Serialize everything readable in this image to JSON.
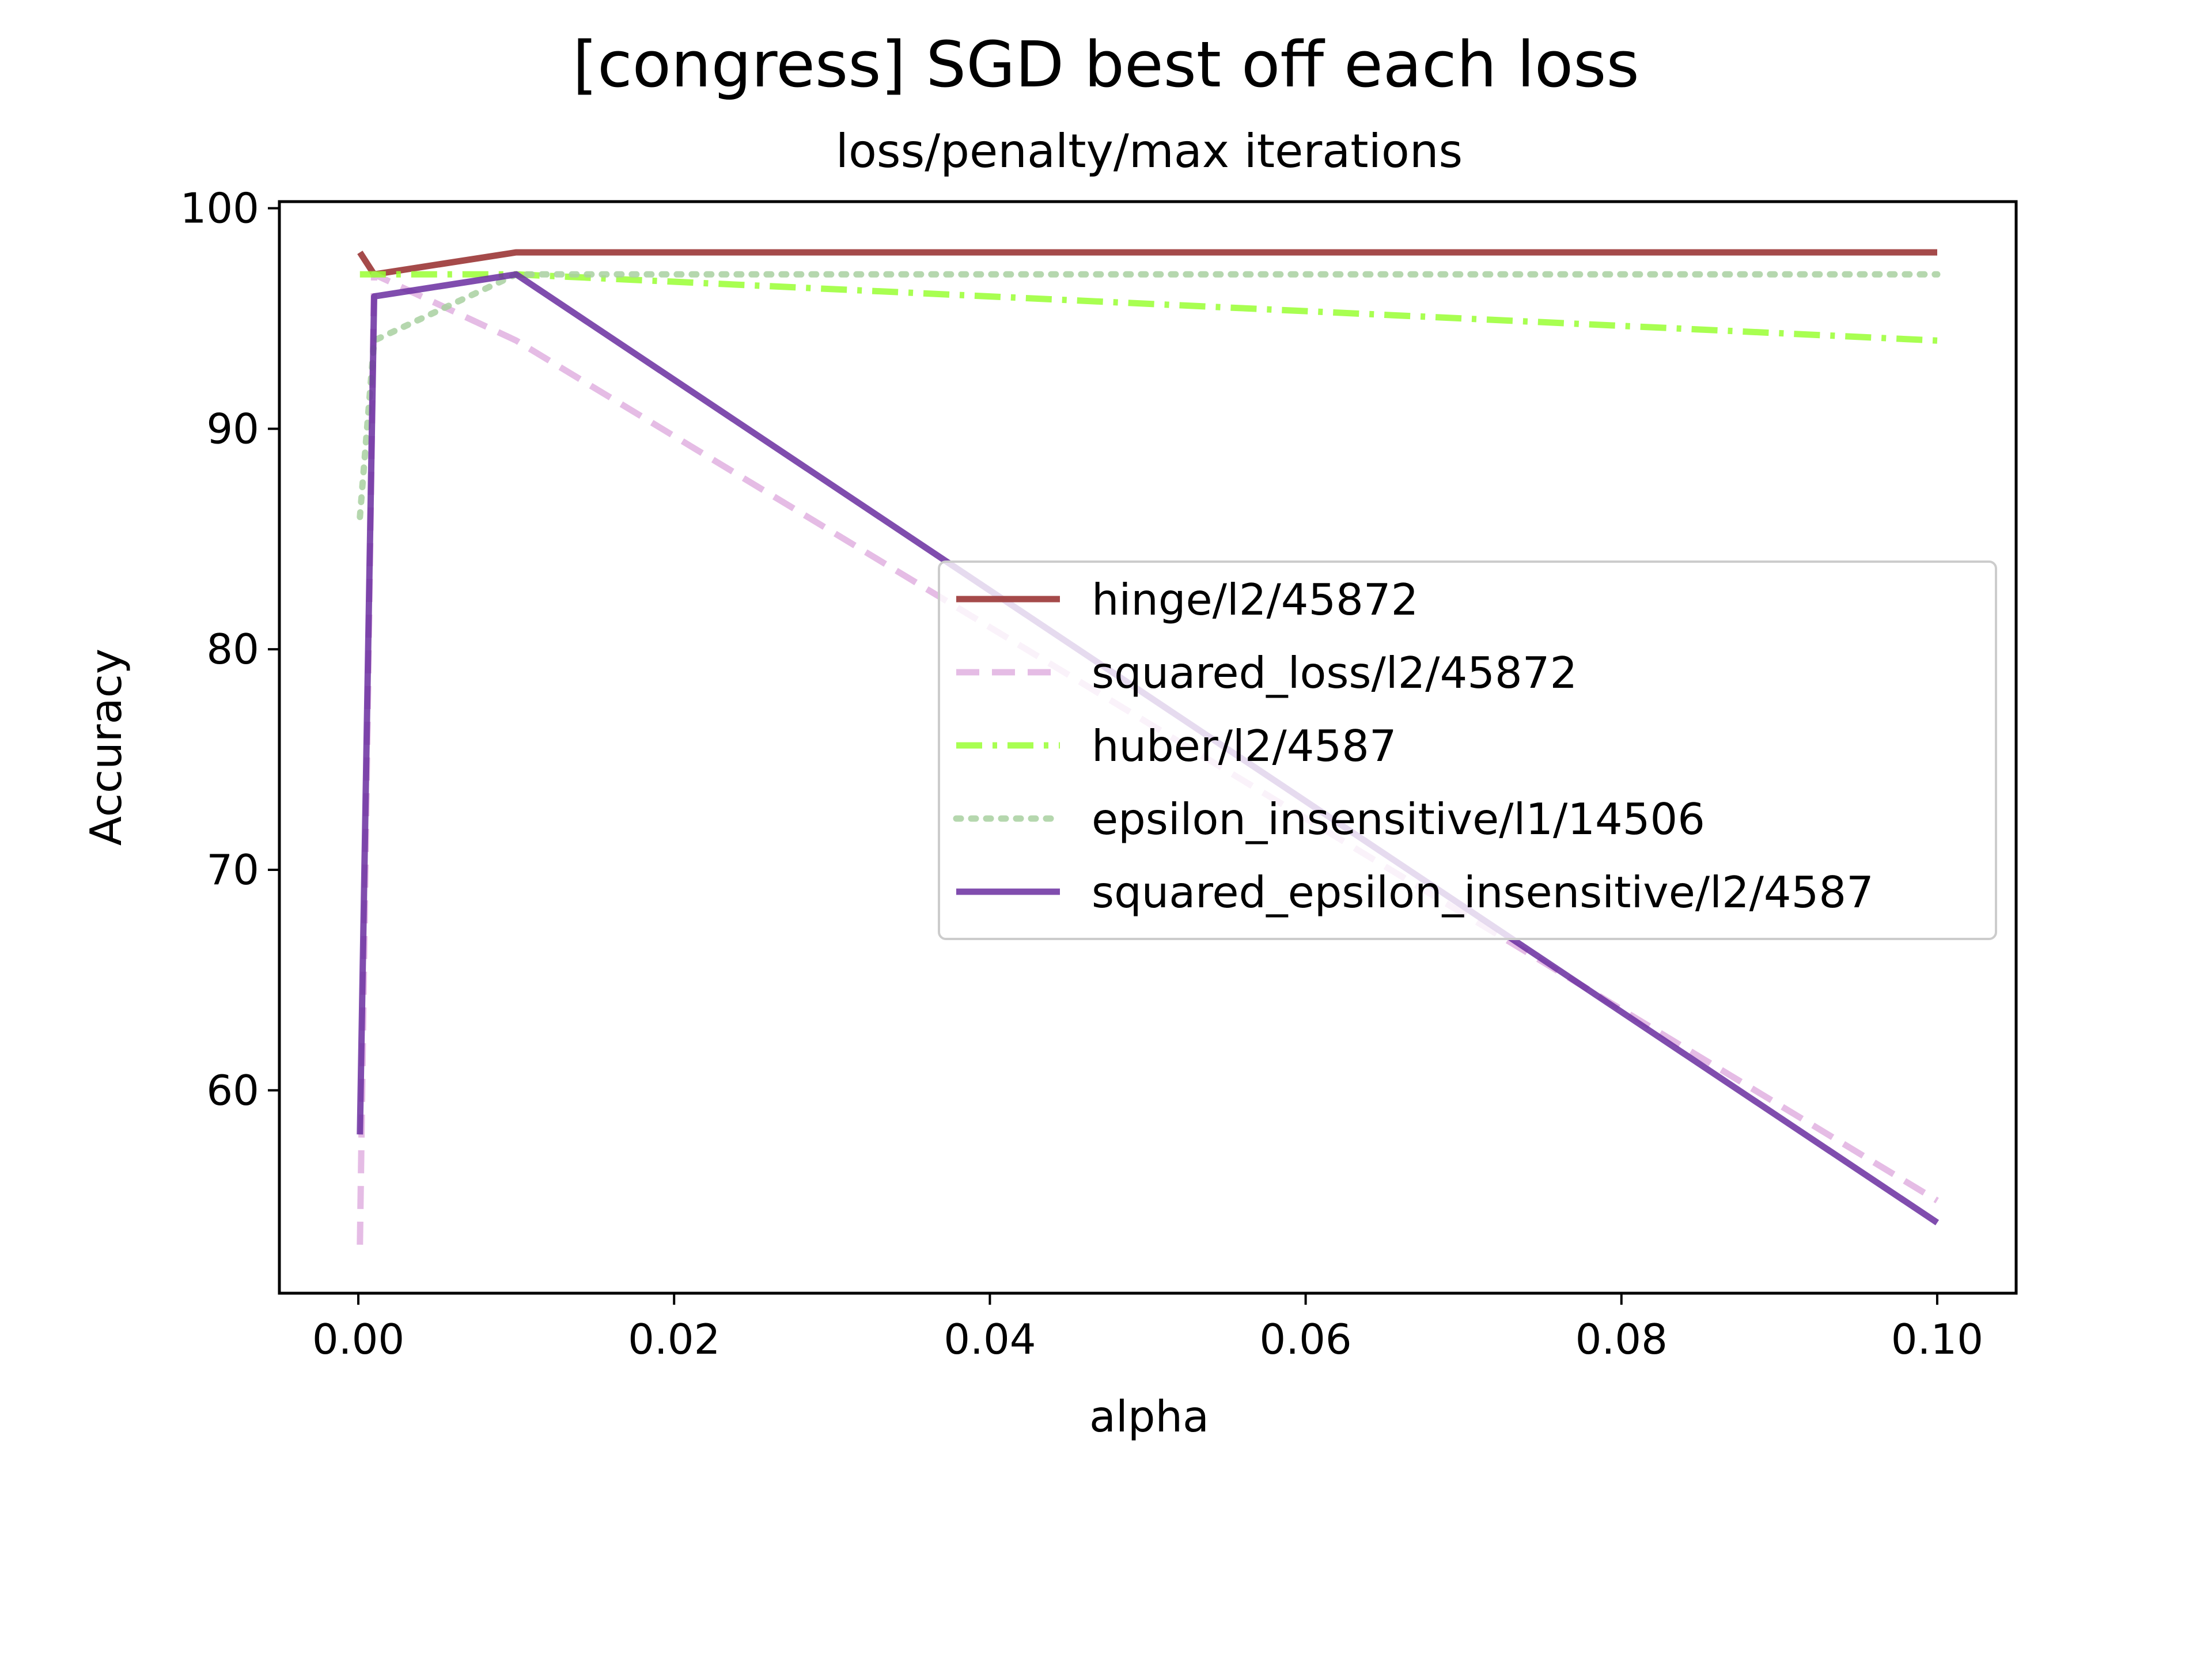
{
  "chart_data": {
    "type": "line",
    "title": "[congress] SGD best off each loss",
    "subtitle": "loss/penalty/max iterations",
    "xlabel": "alpha",
    "ylabel": "Accuracy",
    "xlim": [
      -0.005,
      0.105
    ],
    "ylim": [
      50.8,
      100.3
    ],
    "xticks": [
      0.0,
      0.02,
      0.04,
      0.06,
      0.08,
      0.1
    ],
    "xtick_labels": [
      "0.00",
      "0.02",
      "0.04",
      "0.06",
      "0.08",
      "0.10"
    ],
    "yticks": [
      60,
      70,
      80,
      90,
      100
    ],
    "ytick_labels": [
      "60",
      "70",
      "80",
      "90",
      "100"
    ],
    "grid": false,
    "legend_position": "center-right",
    "x": [
      0.0001,
      0.001,
      0.01,
      0.1
    ],
    "series": [
      {
        "name": "hinge/l2/45872",
        "values": [
          98,
          97,
          98,
          98
        ],
        "color": "#a04040",
        "dash": "solid",
        "opacity": 0.95
      },
      {
        "name": "squared_loss/l2/45872",
        "values": [
          53,
          97,
          94,
          55
        ],
        "color": "#e0b0e0",
        "dash": "dashed",
        "opacity": 0.85
      },
      {
        "name": "huber/l2/4587",
        "values": [
          97,
          97,
          97,
          94
        ],
        "color": "#99ff33",
        "dash": "dashdot",
        "opacity": 0.85
      },
      {
        "name": "epsilon_insensitive/l1/14506",
        "values": [
          86,
          94,
          97,
          97
        ],
        "color": "#a8d0a0",
        "dash": "dotted",
        "opacity": 0.85
      },
      {
        "name": "squared_epsilon_insensitive/l2/4587",
        "values": [
          58,
          96,
          97,
          54
        ],
        "color": "#6a2ea0",
        "dash": "solid",
        "opacity": 0.85
      }
    ]
  }
}
